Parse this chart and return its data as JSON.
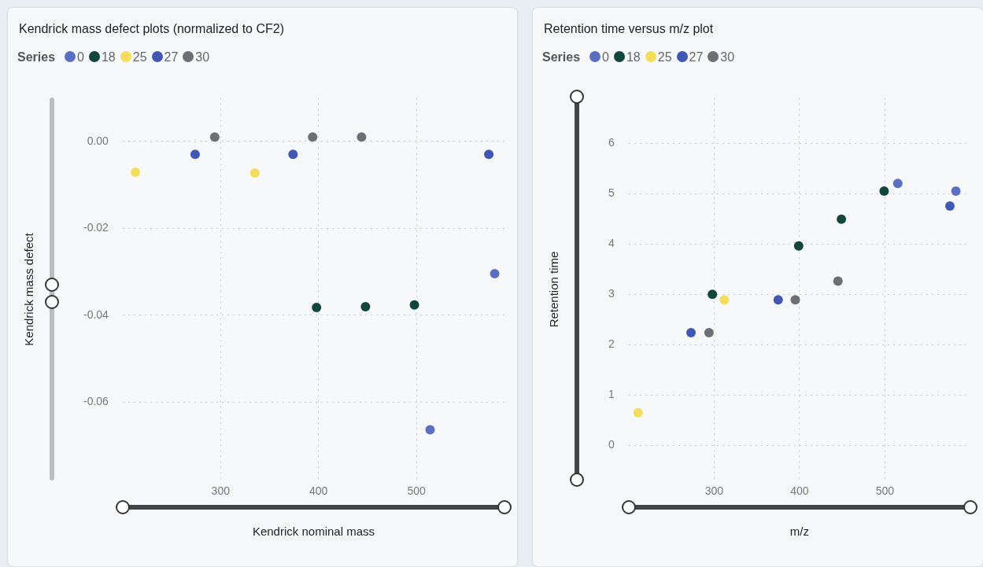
{
  "chart_data": [
    {
      "type": "scatter",
      "title": "Kendrick mass defect plots (normalized to CF2)",
      "xlabel": "Kendrick nominal mass",
      "ylabel": "Kendrick mass defect",
      "legend_title": "Series",
      "legend": "top left",
      "grid": true,
      "marker": "circle",
      "xlim": [
        200,
        590
      ],
      "xticks": [
        300,
        400,
        500
      ],
      "ylim": [
        -0.078,
        0.01
      ],
      "yticks": [
        {
          "value": 0,
          "label": "0.00"
        },
        -0.02,
        -0.04,
        -0.06
      ],
      "series": [
        {
          "name": "0",
          "color": "#5b6fc2",
          "x": [
            514,
            580
          ],
          "values": [
            -0.0663,
            -0.0304
          ]
        },
        {
          "name": "18",
          "color": "#11463b",
          "x": [
            398,
            448,
            498
          ],
          "values": [
            -0.0382,
            -0.038,
            -0.0376
          ]
        },
        {
          "name": "25",
          "color": "#f4dc5c",
          "x": [
            213,
            335
          ],
          "values": [
            -0.0071,
            -0.0073
          ]
        },
        {
          "name": "27",
          "color": "#4058b4",
          "x": [
            274,
            374,
            574
          ],
          "values": [
            -0.003,
            -0.003,
            -0.003
          ]
        },
        {
          "name": "30",
          "color": "#6c6f74",
          "x": [
            294,
            394,
            444
          ],
          "values": [
            0.001,
            0.001,
            0.001
          ]
        }
      ]
    },
    {
      "type": "scatter",
      "title": "Retention time versus m/z plot",
      "xlabel": "m/z",
      "ylabel": "Retention time",
      "legend_title": "Series",
      "legend": "top left",
      "grid": true,
      "marker": "circle",
      "xlim": [
        200,
        600
      ],
      "xticks": [
        300,
        400,
        500
      ],
      "ylim": [
        -0.7,
        6.9
      ],
      "yticks": [
        0,
        1,
        2,
        3,
        4,
        5,
        6
      ],
      "series": [
        {
          "name": "0",
          "color": "#5b6fc2",
          "x": [
            515,
            583
          ],
          "values": [
            5.2,
            5.05
          ]
        },
        {
          "name": "18",
          "color": "#11463b",
          "x": [
            298,
            399,
            449,
            499
          ],
          "values": [
            3.0,
            3.96,
            4.49,
            5.05
          ]
        },
        {
          "name": "25",
          "color": "#f4dc5c",
          "x": [
            211,
            312
          ],
          "values": [
            0.65,
            2.89
          ]
        },
        {
          "name": "27",
          "color": "#4058b4",
          "x": [
            273,
            375,
            576
          ],
          "values": [
            2.24,
            2.89,
            4.75
          ]
        },
        {
          "name": "30",
          "color": "#6c6f74",
          "x": [
            294,
            395,
            445
          ],
          "values": [
            2.24,
            2.89,
            3.26
          ]
        }
      ]
    }
  ]
}
